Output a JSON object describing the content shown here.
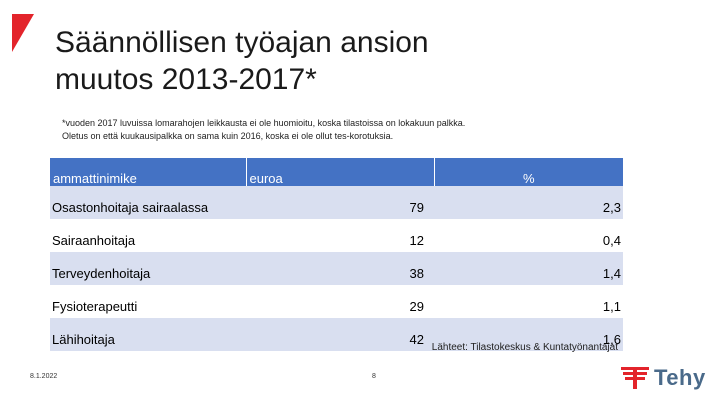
{
  "title": {
    "line1": "Säännöllisen työajan ansion",
    "line2": "muutos 2013-2017*"
  },
  "note": {
    "line1": "*vuoden 2017 luvuissa lomarahojen leikkausta ei ole huomioitu, koska tilastoissa on lokakuun palkka.",
    "line2": "Oletus on että kuukausipalkka on sama kuin 2016, koska ei ole ollut tes-korotuksia."
  },
  "table": {
    "headers": [
      "ammattinimike",
      "euroa",
      "%"
    ],
    "rows": [
      {
        "name": "Osastonhoitaja sairaalassa",
        "euroa": "79",
        "pct": "2,3"
      },
      {
        "name": "Sairaanhoitaja",
        "euroa": "12",
        "pct": "0,4"
      },
      {
        "name": "Terveydenhoitaja",
        "euroa": "38",
        "pct": "1,4"
      },
      {
        "name": "Fysioterapeutti",
        "euroa": "29",
        "pct": "1,1"
      },
      {
        "name": "Lähihoitaja",
        "euroa": "42",
        "pct": "1,6"
      }
    ]
  },
  "source": "Lähteet: Tilastokeskus & Kuntatyönantajat",
  "footer": {
    "date": "8.1.2022",
    "page": "8"
  },
  "brand": {
    "name": "Tehy",
    "logo_icon": "tehy-logo-icon",
    "corner_icon": "corner-mark-icon"
  },
  "colors": {
    "header": "#4472c4",
    "band": "#d9dff0",
    "brand_red": "#e3242b",
    "brand_gray": "#4a6a8a"
  }
}
